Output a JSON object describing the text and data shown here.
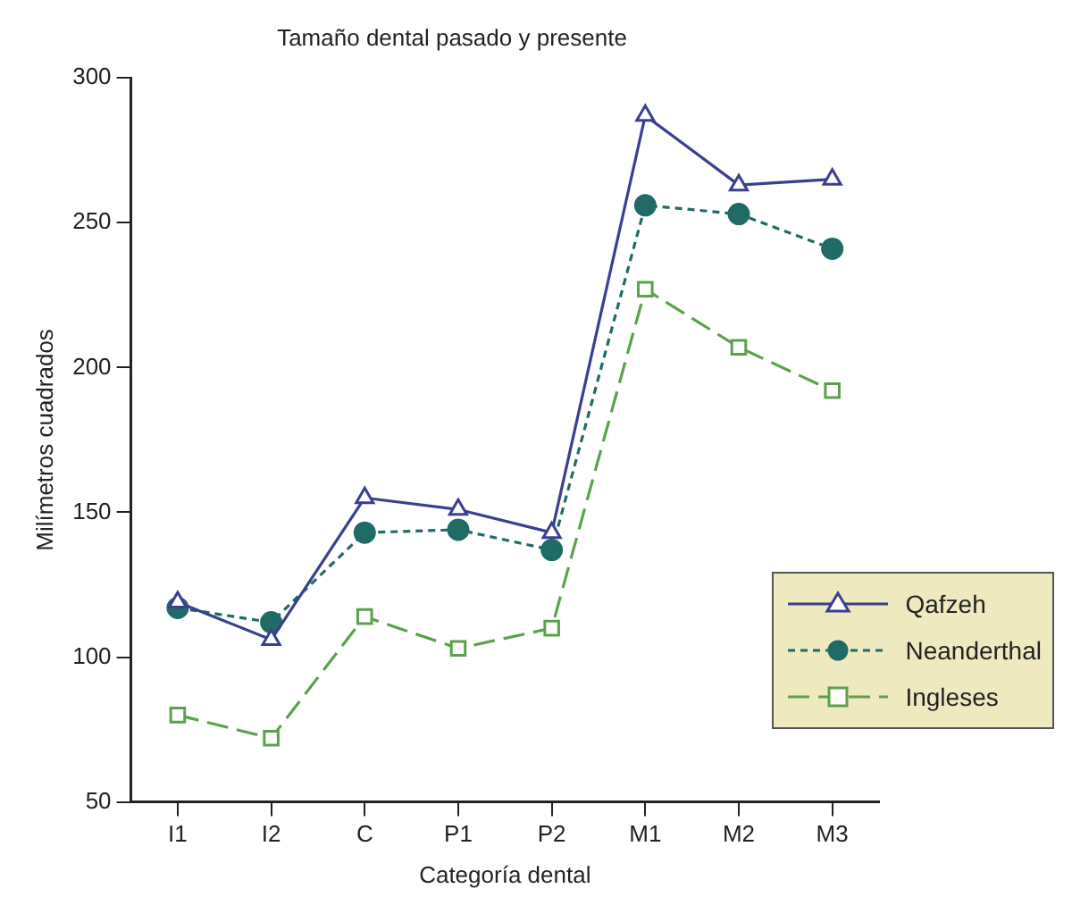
{
  "chart_data": {
    "type": "line",
    "title": "Tamaño dental pasado y presente",
    "xlabel": "Categoría dental",
    "ylabel": "Milímetros cuadrados",
    "categories": [
      "I1",
      "I2",
      "C",
      "P1",
      "P2",
      "M1",
      "M2",
      "M3"
    ],
    "series": [
      {
        "name": "Qafzeh",
        "color": "#3a3f8f",
        "marker": "triangle",
        "line_style": "solid",
        "values": [
          119,
          106,
          155,
          151,
          143,
          287,
          263,
          265
        ]
      },
      {
        "name": "Neanderthal",
        "color": "#1f6b66",
        "marker": "circle",
        "line_style": "dotted",
        "values": [
          117,
          112,
          143,
          144,
          137,
          256,
          253,
          241
        ]
      },
      {
        "name": "Ingleses",
        "color": "#5aa24a",
        "marker": "square",
        "line_style": "dashed",
        "values": [
          80,
          72,
          114,
          103,
          110,
          227,
          207,
          192
        ]
      }
    ],
    "ylim": [
      50,
      300
    ],
    "yticks": [
      50,
      100,
      150,
      200,
      250,
      300
    ],
    "grid": false,
    "legend": "bottom right"
  }
}
